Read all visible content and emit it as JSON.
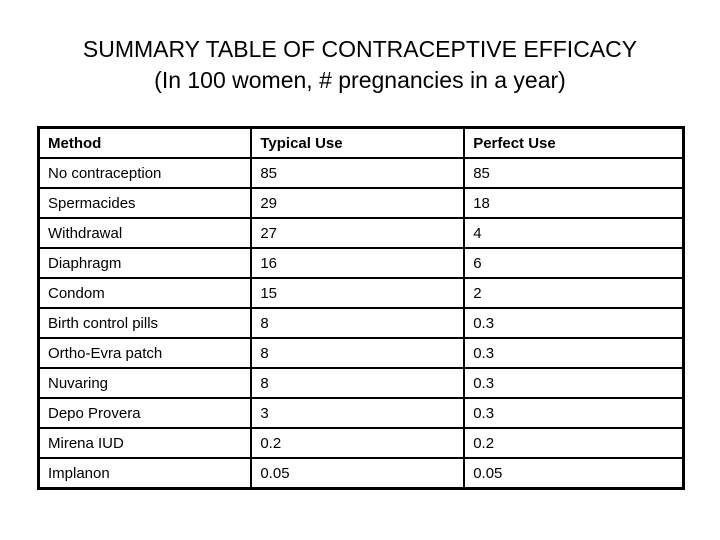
{
  "slide": {
    "title_line1": "SUMMARY TABLE OF CONTRACEPTIVE EFFICACY",
    "title_line2": "(In 100 women, # pregnancies in a year)"
  },
  "table": {
    "headers": [
      "Method",
      "Typical Use",
      "Perfect Use"
    ],
    "rows": [
      {
        "method": "No contraception",
        "typical": "85",
        "perfect": "85"
      },
      {
        "method": "Spermacides",
        "typical": "29",
        "perfect": "18"
      },
      {
        "method": "Withdrawal",
        "typical": "27",
        "perfect": "4"
      },
      {
        "method": "Diaphragm",
        "typical": "16",
        "perfect": "6"
      },
      {
        "method": "Condom",
        "typical": "15",
        "perfect": "2"
      },
      {
        "method": "Birth control pills",
        "typical": "8",
        "perfect": "0.3"
      },
      {
        "method": "Ortho-Evra patch",
        "typical": "8",
        "perfect": "0.3"
      },
      {
        "method": "Nuvaring",
        "typical": "8",
        "perfect": "0.3"
      },
      {
        "method": "Depo Provera",
        "typical": "3",
        "perfect": "0.3"
      },
      {
        "method": "Mirena IUD",
        "typical": "0.2",
        "perfect": "0.2"
      },
      {
        "method": "Implanon",
        "typical": "0.05",
        "perfect": "0.05"
      }
    ]
  },
  "colors": {
    "text": "#000000",
    "background": "#ffffff",
    "border": "#000000"
  }
}
